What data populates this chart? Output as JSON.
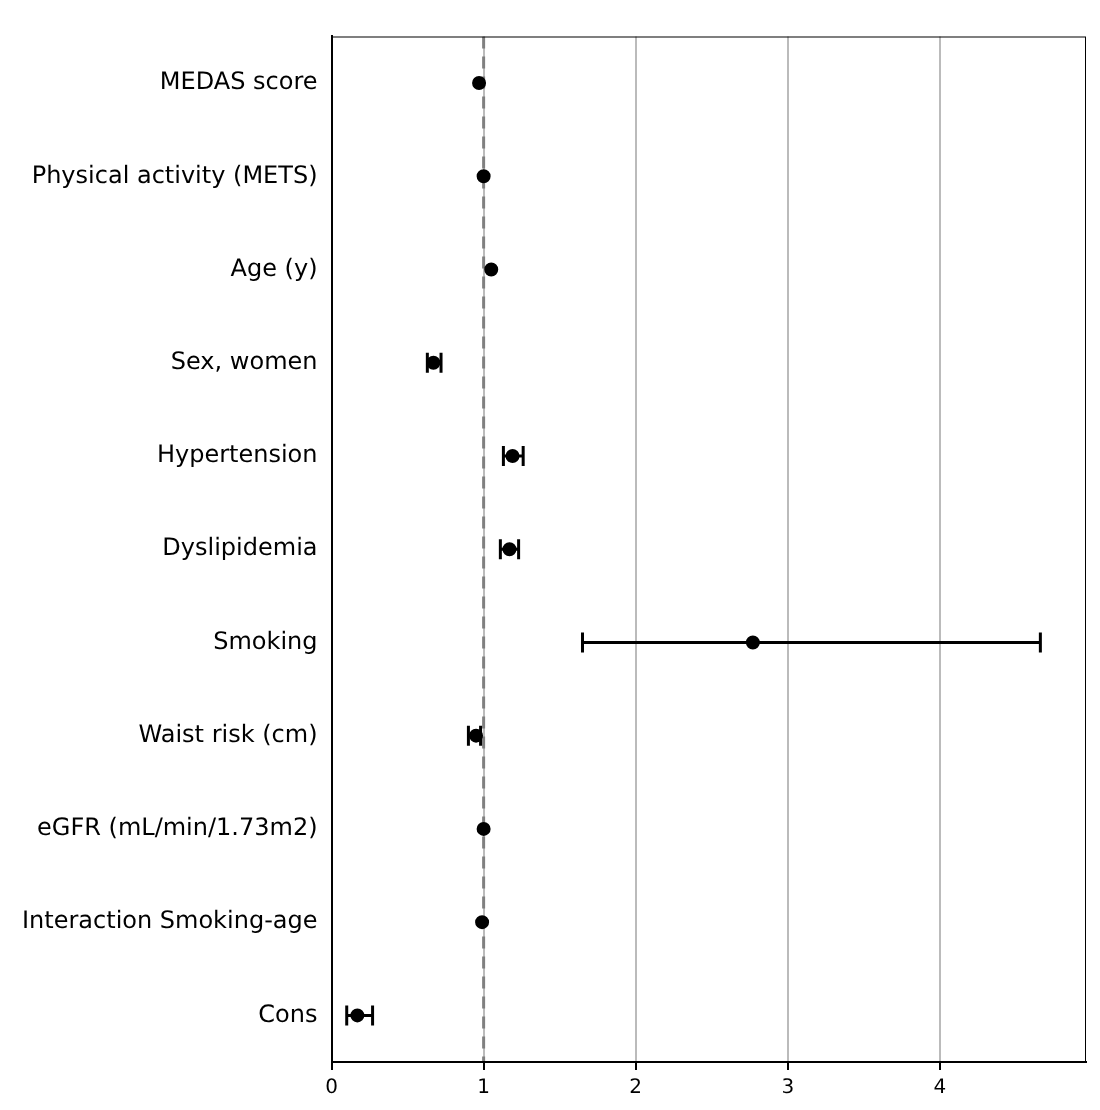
{
  "chart_data": {
    "type": "scatter",
    "orientation": "horizontal",
    "categories": [
      "MEDAS score",
      "Physical activity (METS)",
      "Age (y)",
      "Sex, women",
      "Hypertension",
      "Dyslipidemia",
      "Smoking",
      "Waist risk (cm)",
      "eGFR (mL/min/1.73m2)",
      "Interaction Smoking-age",
      "Cons"
    ],
    "values": [
      0.97,
      1.0,
      1.05,
      0.67,
      1.19,
      1.17,
      2.77,
      0.95,
      1.0,
      0.99,
      0.17
    ],
    "errors": [
      null,
      null,
      null,
      [
        0.63,
        0.72
      ],
      [
        1.13,
        1.26
      ],
      [
        1.11,
        1.23
      ],
      [
        1.65,
        4.66
      ],
      [
        0.9,
        0.98
      ],
      null,
      null,
      [
        0.1,
        0.27
      ]
    ],
    "color": "#000000",
    "marker": "circle",
    "xlim": [
      0,
      4.96
    ],
    "xticks": [
      0,
      1,
      2,
      3,
      4
    ],
    "grid": "x",
    "ref_lines": [
      {
        "axis": "x",
        "value": 1,
        "color": "#808080",
        "line_style": "dashed"
      }
    ]
  }
}
